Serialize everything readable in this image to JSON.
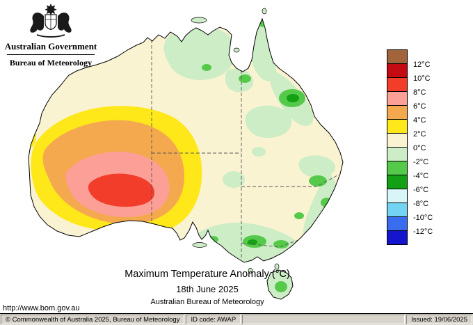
{
  "header": {
    "gov_title": "Australian Government",
    "bureau_title": "Bureau of Meteorology"
  },
  "map": {
    "title": "Maximum Temperature Anomaly (°C)",
    "date": "18th June 2025",
    "source": "Australian Bureau of Meteorology",
    "url": "http://www.bom.gov.au"
  },
  "legend": {
    "entries": [
      {
        "color": "#a2643a",
        "label": "12°C"
      },
      {
        "color": "#c40a12",
        "label": "10°C"
      },
      {
        "color": "#f23d2b",
        "label": "8°C"
      },
      {
        "color": "#fc9f96",
        "label": "6°C"
      },
      {
        "color": "#f5a94f",
        "label": "4°C"
      },
      {
        "color": "#ffe81a",
        "label": "2°C"
      },
      {
        "color": "#faf3d2",
        "label": "0°C"
      },
      {
        "color": "#cdedc6",
        "label": "-2°C"
      },
      {
        "color": "#55c94a",
        "label": "-4°C"
      },
      {
        "color": "#14a014",
        "label": "-6°C"
      },
      {
        "color": "#d8f6f8",
        "label": "-8°C"
      },
      {
        "color": "#72d4f2",
        "label": "-10°C"
      },
      {
        "color": "#3a6cf0",
        "label": "-12°C"
      },
      {
        "color": "#1515cd",
        "label": null
      }
    ]
  },
  "colors": {
    "land": "#faf3d2",
    "palegreen": "#cdedc6",
    "green": "#55c94a",
    "darkgreen": "#14a014",
    "yellow": "#ffe81a",
    "orange": "#f5a94f",
    "salmon": "#fc9f96",
    "red": "#f23d2b",
    "coast": "#000000",
    "state_border": "#555555"
  },
  "statusbar": {
    "copyright": "© Commonwealth of Australia 2025, Bureau of Meteorology",
    "id_code": "ID code: AWAP",
    "issued": "Issued: 19/06/2025"
  }
}
